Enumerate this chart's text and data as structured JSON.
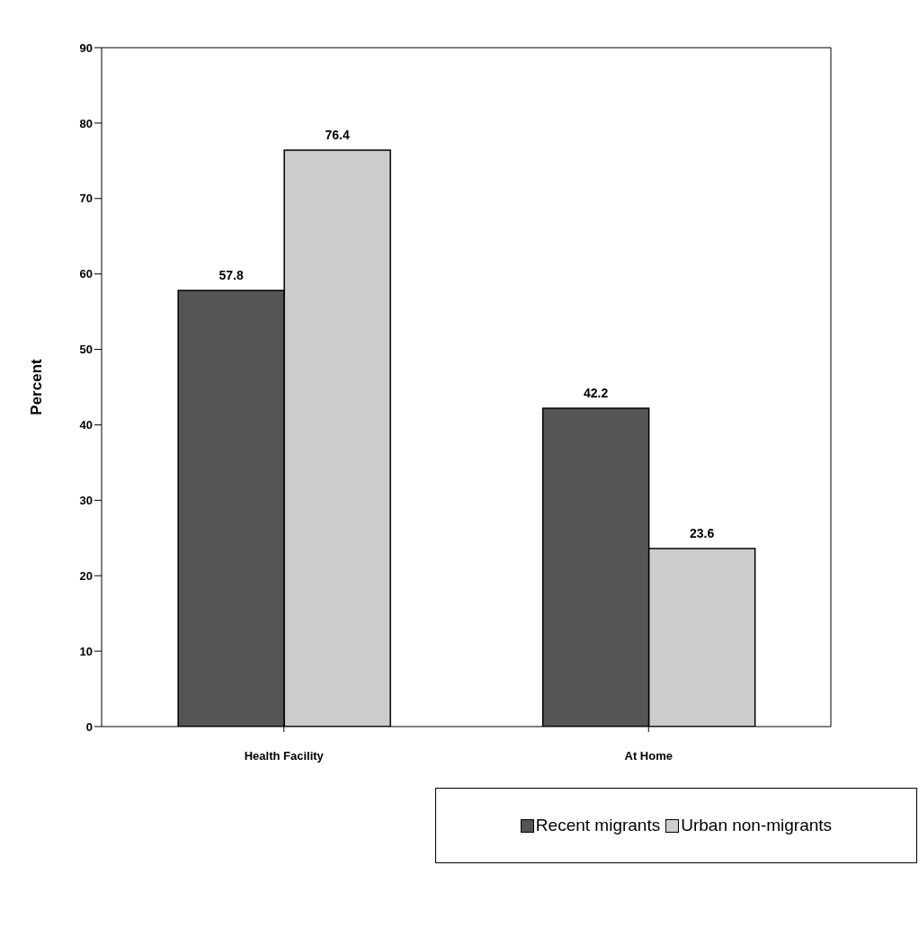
{
  "chart_data": {
    "type": "bar",
    "ylabel": "Percent",
    "categories": [
      "Health Facility",
      "At Home"
    ],
    "series": [
      {
        "name": "Recent migrants",
        "color": "#555555",
        "values": [
          57.8,
          42.2
        ]
      },
      {
        "name": "Urban non-migrants",
        "color": "#cccccc",
        "values": [
          76.4,
          23.6
        ]
      }
    ],
    "ylim": [
      0,
      90
    ],
    "yticks": [
      0,
      10,
      20,
      30,
      40,
      50,
      60,
      70,
      80,
      90
    ],
    "data_labels": true,
    "grid": false,
    "legend": "bottom right"
  }
}
